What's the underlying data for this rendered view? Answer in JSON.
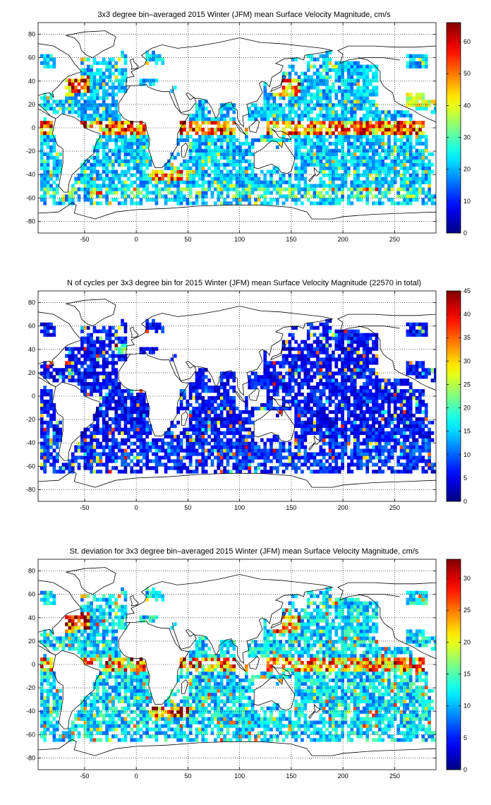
{
  "figure": {
    "colormap": "jet",
    "land_color": "#ffffff",
    "coastline_color": "#000000"
  },
  "chart_data": [
    {
      "type": "heatmap",
      "title": "3x3 degree bin–averaged 2015 Winter (JFM) mean Surface Velocity Magnitude, cm/s",
      "bin_size_deg": 3,
      "xlim": [
        -95,
        290
      ],
      "ylim": [
        -90,
        90
      ],
      "xticks": [
        -50,
        0,
        50,
        100,
        150,
        200,
        250
      ],
      "yticks": [
        -80,
        -60,
        -40,
        -20,
        0,
        20,
        40,
        60,
        80
      ],
      "colorbar": {
        "min": 0,
        "max": 66,
        "ticks": [
          0,
          10,
          20,
          30,
          40,
          50,
          60
        ]
      },
      "field": "velocity",
      "value_range_estimate": [
        0,
        66
      ]
    },
    {
      "type": "heatmap",
      "title": "N of cycles per 3x3 degree bin for 2015 Winter (JFM) mean Surface Velocity Magnitude (22570 in total)",
      "bin_size_deg": 3,
      "xlim": [
        -95,
        290
      ],
      "ylim": [
        -90,
        90
      ],
      "xticks": [
        -50,
        0,
        50,
        100,
        150,
        200,
        250
      ],
      "yticks": [
        -80,
        -60,
        -40,
        -20,
        0,
        20,
        40,
        60,
        80
      ],
      "colorbar": {
        "min": 0,
        "max": 45,
        "ticks": [
          0,
          5,
          10,
          15,
          20,
          25,
          30,
          35,
          40,
          45
        ]
      },
      "field": "count",
      "total_count": 22570,
      "value_range_estimate": [
        0,
        45
      ]
    },
    {
      "type": "heatmap",
      "title": "St. deviation for 3x3 degree bin–averaged 2015 Winter (JFM) mean Surface Velocity Magnitude, cm/s",
      "bin_size_deg": 3,
      "xlim": [
        -95,
        290
      ],
      "ylim": [
        -90,
        90
      ],
      "xticks": [
        -50,
        0,
        50,
        100,
        150,
        200,
        250
      ],
      "yticks": [
        -80,
        -60,
        -40,
        -20,
        0,
        20,
        40,
        60,
        80
      ],
      "colorbar": {
        "min": 0,
        "max": 33,
        "ticks": [
          0,
          5,
          10,
          15,
          20,
          25,
          30
        ]
      },
      "field": "stdev",
      "value_range_estimate": [
        0,
        33
      ]
    }
  ]
}
